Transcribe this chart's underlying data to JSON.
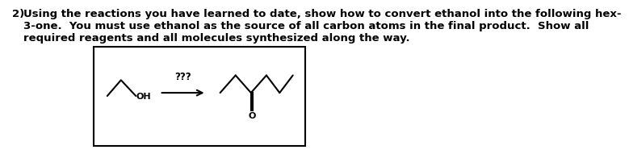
{
  "title_number": "2)",
  "text_line1": "Using the reactions you have learned to date, show how to convert ethanol into the following hex-",
  "text_line2": "3-one.  You must use ethanol as the source of all carbon atoms in the final product.  Show all",
  "text_line3": "required reagents and all molecules synthesized along the way.",
  "arrow_label": "???",
  "bg_color": "#ffffff",
  "box_color": "#000000",
  "text_color": "#000000",
  "font_size": 9.5,
  "bold": false
}
